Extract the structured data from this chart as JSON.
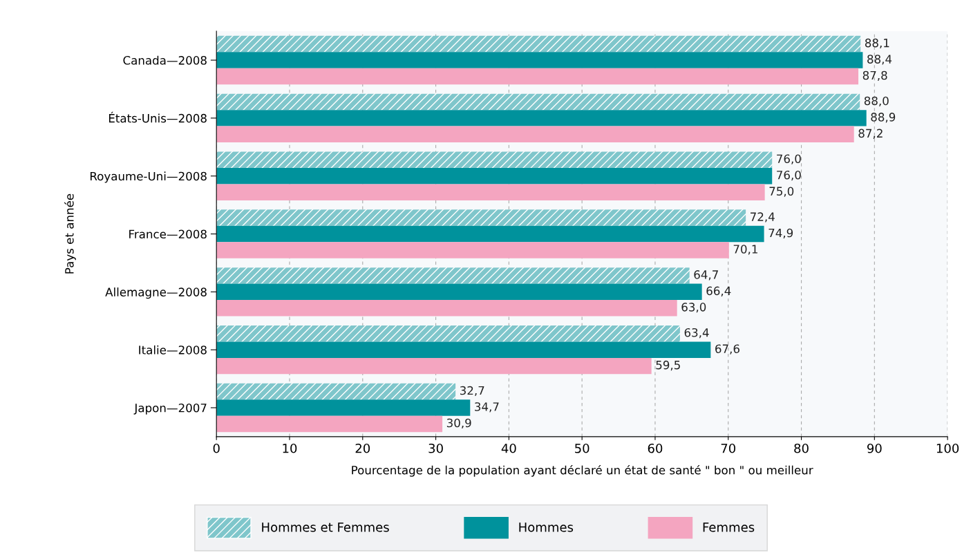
{
  "chart_data": {
    "type": "bar",
    "orientation": "horizontal",
    "categories": [
      "Canada—2008",
      "États-Unis—2008",
      "Royaume-Uni—2008",
      "France—2008",
      "Allemagne—2008",
      "Italie—2008",
      "Japon—2007"
    ],
    "series": [
      {
        "name": "Hommes et Femmes",
        "color": "#7fc6cb",
        "values": [
          88.1,
          88.0,
          76.0,
          72.4,
          64.7,
          63.4,
          32.7
        ],
        "value_labels": [
          "88,1",
          "88,0",
          "76,0",
          "72,4",
          "64,7",
          "63,4",
          "32,7"
        ]
      },
      {
        "name": "Hommes",
        "color": "#00929c",
        "values": [
          88.4,
          88.9,
          76.0,
          74.9,
          66.4,
          67.6,
          34.7
        ],
        "value_labels": [
          "88,4",
          "88,9",
          "76,0",
          "74,9",
          "66,4",
          "67,6",
          "34,7"
        ]
      },
      {
        "name": "Femmes",
        "color": "#f4a5c0",
        "values": [
          87.8,
          87.2,
          75.0,
          70.1,
          63.0,
          59.5,
          30.9
        ],
        "value_labels": [
          "87,8",
          "87,2",
          "75,0",
          "70,1",
          "63,0",
          "59,5",
          "30,9"
        ]
      }
    ],
    "xlim": [
      0,
      100
    ],
    "xticks": [
      0,
      10,
      20,
      30,
      40,
      50,
      60,
      70,
      80,
      90,
      100
    ],
    "xlabel": "Pourcentage de la population ayant déclaré un état de santé \" bon \" ou meilleur",
    "ylabel": "Pays et année",
    "grid": "x",
    "legend": "bottom"
  }
}
